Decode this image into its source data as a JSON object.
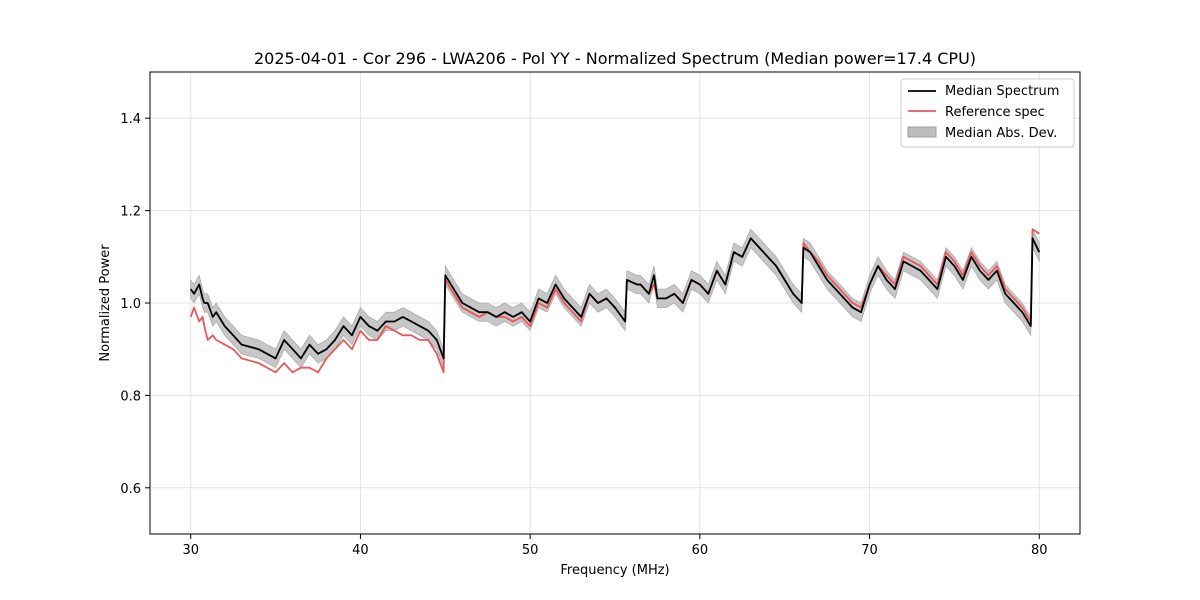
{
  "chart_data": {
    "type": "line",
    "title": "2025-04-01 - Cor 296 - LWA206 - Pol YY - Normalized Spectrum (Median power=17.4 CPU)",
    "xlabel": "Frequency (MHz)",
    "ylabel": "Normalized Power",
    "xlim": [
      27.6,
      82.4
    ],
    "ylim": [
      0.5,
      1.5
    ],
    "xticks": [
      30,
      40,
      50,
      60,
      70,
      80
    ],
    "yticks": [
      0.6,
      0.8,
      1.0,
      1.2,
      1.4
    ],
    "xtick_labels": [
      "30",
      "40",
      "50",
      "60",
      "70",
      "80"
    ],
    "ytick_labels": [
      "0.6",
      "0.8",
      "1.0",
      "1.2",
      "1.4"
    ],
    "grid": true,
    "legend_position": "top-right",
    "colors": {
      "median": "#000000",
      "reference": "#e8575a",
      "mad_fill": "#bdbdbd",
      "mad_edge": "#9e9e9e",
      "grid": "#e3e3e3"
    },
    "series": [
      {
        "name": "Median Spectrum",
        "x": [
          30.0,
          30.2,
          30.5,
          30.7,
          30.8,
          31.0,
          31.3,
          31.5,
          32.0,
          32.5,
          33.0,
          34.0,
          35.0,
          35.5,
          36.0,
          36.5,
          37.0,
          37.5,
          38.0,
          38.5,
          39.0,
          39.5,
          40.0,
          40.5,
          41.0,
          41.5,
          42.0,
          42.5,
          43.0,
          43.5,
          44.0,
          44.5,
          44.9,
          45.0,
          45.5,
          46.0,
          46.5,
          47.0,
          47.5,
          48.0,
          48.5,
          49.0,
          49.5,
          50.0,
          50.5,
          51.0,
          51.5,
          52.0,
          52.5,
          53.0,
          53.5,
          54.0,
          54.5,
          55.0,
          55.6,
          55.7,
          56.3,
          56.5,
          57.0,
          57.3,
          57.5,
          58.0,
          58.5,
          59.0,
          59.5,
          60.0,
          60.5,
          61.0,
          61.5,
          62.0,
          62.5,
          63.0,
          63.5,
          64.0,
          64.5,
          65.0,
          65.5,
          66.0,
          66.1,
          66.5,
          67.0,
          67.5,
          68.0,
          68.5,
          69.0,
          69.5,
          70.0,
          70.5,
          71.0,
          71.5,
          72.0,
          72.5,
          73.0,
          73.5,
          74.0,
          74.5,
          75.0,
          75.5,
          76.0,
          76.5,
          77.0,
          77.5,
          78.0,
          78.5,
          79.0,
          79.5,
          79.6,
          80.0
        ],
        "values": [
          1.03,
          1.02,
          1.04,
          1.01,
          1.0,
          1.0,
          0.97,
          0.98,
          0.95,
          0.93,
          0.91,
          0.9,
          0.88,
          0.92,
          0.9,
          0.88,
          0.91,
          0.89,
          0.9,
          0.92,
          0.95,
          0.93,
          0.97,
          0.95,
          0.94,
          0.96,
          0.96,
          0.97,
          0.96,
          0.95,
          0.94,
          0.92,
          0.88,
          1.06,
          1.03,
          1.0,
          0.99,
          0.98,
          0.98,
          0.97,
          0.98,
          0.97,
          0.98,
          0.96,
          1.01,
          1.0,
          1.04,
          1.01,
          0.99,
          0.97,
          1.02,
          1.0,
          1.01,
          0.99,
          0.96,
          1.05,
          1.04,
          1.04,
          1.02,
          1.06,
          1.01,
          1.01,
          1.02,
          1.0,
          1.05,
          1.04,
          1.02,
          1.07,
          1.04,
          1.11,
          1.1,
          1.14,
          1.12,
          1.1,
          1.08,
          1.05,
          1.02,
          1.0,
          1.12,
          1.11,
          1.08,
          1.05,
          1.03,
          1.01,
          0.99,
          0.98,
          1.04,
          1.08,
          1.05,
          1.03,
          1.09,
          1.08,
          1.07,
          1.05,
          1.03,
          1.1,
          1.08,
          1.05,
          1.1,
          1.07,
          1.05,
          1.07,
          1.02,
          1.0,
          0.98,
          0.95,
          1.14,
          1.11
        ]
      },
      {
        "name": "Reference spec",
        "x": [
          30.0,
          30.2,
          30.5,
          30.7,
          30.8,
          31.0,
          31.3,
          31.5,
          32.0,
          32.5,
          33.0,
          34.0,
          35.0,
          35.5,
          36.0,
          36.5,
          37.0,
          37.5,
          38.0,
          38.5,
          39.0,
          39.5,
          40.0,
          40.5,
          41.0,
          41.5,
          42.0,
          42.5,
          43.0,
          43.5,
          44.0,
          44.5,
          44.9,
          45.0,
          45.5,
          46.0,
          46.5,
          47.0,
          47.5,
          48.0,
          48.5,
          49.0,
          49.5,
          50.0,
          50.5,
          51.0,
          51.5,
          52.0,
          52.5,
          53.0,
          53.5,
          54.0,
          54.5,
          55.0,
          55.6,
          55.7,
          56.3,
          56.5,
          57.0,
          57.3,
          57.5,
          58.0,
          58.5,
          59.0,
          59.5,
          60.0,
          60.5,
          61.0,
          61.5,
          62.0,
          62.5,
          63.0,
          63.5,
          64.0,
          64.5,
          65.0,
          65.5,
          66.0,
          66.1,
          66.5,
          67.0,
          67.5,
          68.0,
          68.5,
          69.0,
          69.5,
          70.0,
          70.5,
          71.0,
          71.5,
          72.0,
          72.5,
          73.0,
          73.5,
          74.0,
          74.5,
          75.0,
          75.5,
          76.0,
          76.5,
          77.0,
          77.5,
          78.0,
          78.5,
          79.0,
          79.5,
          79.6,
          80.0
        ],
        "values": [
          0.97,
          0.99,
          0.96,
          0.97,
          0.95,
          0.92,
          0.93,
          0.92,
          0.91,
          0.9,
          0.88,
          0.87,
          0.85,
          0.87,
          0.85,
          0.86,
          0.86,
          0.85,
          0.88,
          0.9,
          0.92,
          0.9,
          0.94,
          0.92,
          0.92,
          0.95,
          0.94,
          0.93,
          0.93,
          0.92,
          0.92,
          0.89,
          0.85,
          1.05,
          1.02,
          0.99,
          0.98,
          0.97,
          0.98,
          0.97,
          0.97,
          0.96,
          0.97,
          0.95,
          1.0,
          0.99,
          1.03,
          1.0,
          0.98,
          0.96,
          1.02,
          1.0,
          1.01,
          0.99,
          0.96,
          1.05,
          1.04,
          1.04,
          1.02,
          1.04,
          1.01,
          1.01,
          1.02,
          1.0,
          1.05,
          1.04,
          1.02,
          1.07,
          1.04,
          1.11,
          1.1,
          1.14,
          1.12,
          1.1,
          1.08,
          1.05,
          1.02,
          1.0,
          1.13,
          1.11,
          1.09,
          1.06,
          1.04,
          1.02,
          1.0,
          0.99,
          1.04,
          1.08,
          1.06,
          1.04,
          1.1,
          1.09,
          1.08,
          1.06,
          1.04,
          1.11,
          1.09,
          1.06,
          1.11,
          1.08,
          1.06,
          1.08,
          1.03,
          1.01,
          0.99,
          0.96,
          1.16,
          1.15
        ]
      }
    ],
    "band": {
      "name": "Median Abs. Dev.",
      "half_width": 0.02
    }
  }
}
